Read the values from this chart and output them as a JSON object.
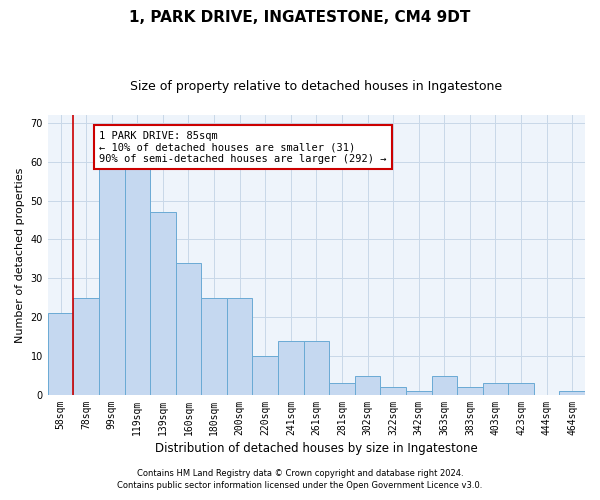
{
  "title": "1, PARK DRIVE, INGATESTONE, CM4 9DT",
  "subtitle": "Size of property relative to detached houses in Ingatestone",
  "xlabel": "Distribution of detached houses by size in Ingatestone",
  "ylabel": "Number of detached properties",
  "categories": [
    "58sqm",
    "78sqm",
    "99sqm",
    "119sqm",
    "139sqm",
    "160sqm",
    "180sqm",
    "200sqm",
    "220sqm",
    "241sqm",
    "261sqm",
    "281sqm",
    "302sqm",
    "322sqm",
    "342sqm",
    "363sqm",
    "383sqm",
    "403sqm",
    "423sqm",
    "444sqm",
    "464sqm"
  ],
  "values": [
    21,
    25,
    58,
    58,
    47,
    34,
    25,
    25,
    10,
    14,
    14,
    3,
    5,
    2,
    1,
    5,
    2,
    3,
    3,
    0,
    1
  ],
  "bar_color": "#c5d8f0",
  "bar_edge_color": "#6aaad4",
  "vline_x": 1,
  "vline_color": "#cc0000",
  "annotation_text": "1 PARK DRIVE: 85sqm\n← 10% of detached houses are smaller (31)\n90% of semi-detached houses are larger (292) →",
  "annotation_box_color": "#ffffff",
  "annotation_box_edge": "#cc0000",
  "ylim": [
    0,
    72
  ],
  "yticks": [
    0,
    10,
    20,
    30,
    40,
    50,
    60,
    70
  ],
  "footer1": "Contains HM Land Registry data © Crown copyright and database right 2024.",
  "footer2": "Contains public sector information licensed under the Open Government Licence v3.0.",
  "bg_color": "#ffffff",
  "ax_bg_color": "#eef4fb",
  "grid_color": "#c8d8e8",
  "title_fontsize": 11,
  "subtitle_fontsize": 9,
  "ylabel_fontsize": 8,
  "xlabel_fontsize": 8.5,
  "tick_fontsize": 7,
  "annot_fontsize": 7.5,
  "footer_fontsize": 6
}
